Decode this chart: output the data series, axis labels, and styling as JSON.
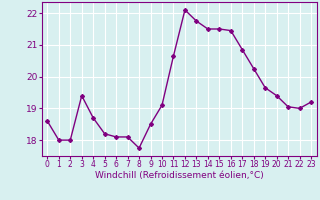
{
  "x": [
    0,
    1,
    2,
    3,
    4,
    5,
    6,
    7,
    8,
    9,
    10,
    11,
    12,
    13,
    14,
    15,
    16,
    17,
    18,
    19,
    20,
    21,
    22,
    23
  ],
  "y": [
    18.6,
    18.0,
    18.0,
    19.4,
    18.7,
    18.2,
    18.1,
    18.1,
    17.75,
    18.5,
    19.1,
    20.65,
    22.1,
    21.75,
    21.5,
    21.5,
    21.45,
    20.85,
    20.25,
    19.65,
    19.4,
    19.05,
    19.0,
    19.2
  ],
  "line_color": "#800080",
  "marker": "D",
  "markersize": 2,
  "linewidth": 1.0,
  "xlabel": "Windchill (Refroidissement éolien,°C)",
  "xlabel_fontsize": 6.5,
  "ylabel_ticks": [
    18,
    19,
    20,
    21,
    22
  ],
  "xtick_labels": [
    "0",
    "1",
    "2",
    "3",
    "4",
    "5",
    "6",
    "7",
    "8",
    "9",
    "10",
    "11",
    "12",
    "13",
    "14",
    "15",
    "16",
    "17",
    "18",
    "19",
    "20",
    "21",
    "22",
    "23"
  ],
  "ylim": [
    17.5,
    22.35
  ],
  "xlim": [
    -0.5,
    23.5
  ],
  "bg_color": "#d8f0f0",
  "grid_color": "#ffffff",
  "tick_color": "#800080",
  "ytick_fontsize": 6.5,
  "xtick_fontsize": 5.5
}
